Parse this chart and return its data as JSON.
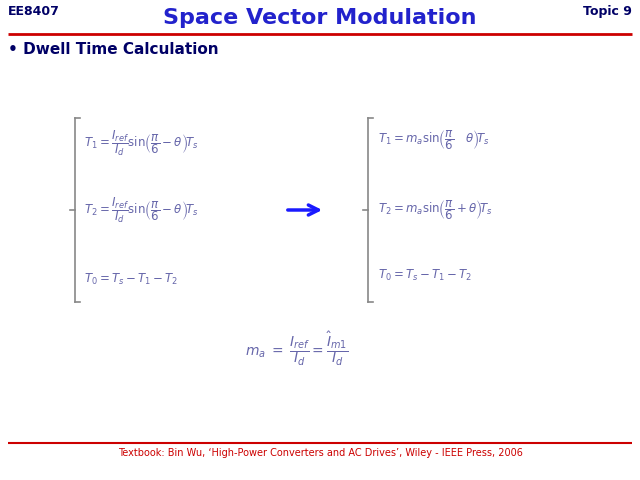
{
  "title": "Space Vector Modulation",
  "title_color": "#2222cc",
  "header_left": "EE8407",
  "header_right": "Topic 9",
  "header_color": "#000066",
  "bullet": "• Dwell Time Calculation",
  "bullet_color": "#000066",
  "footer": "Textbook: Bin Wu, ‘High-Power Converters and AC Drives’, Wiley - IEEE Press, 2006",
  "footer_color": "#cc0000",
  "bg_color": "#ffffff",
  "line_color": "#cc0000",
  "arrow_color": "#1a1aff",
  "eq_color": "#6666aa",
  "figsize": [
    6.4,
    4.8
  ],
  "dpi": 100
}
